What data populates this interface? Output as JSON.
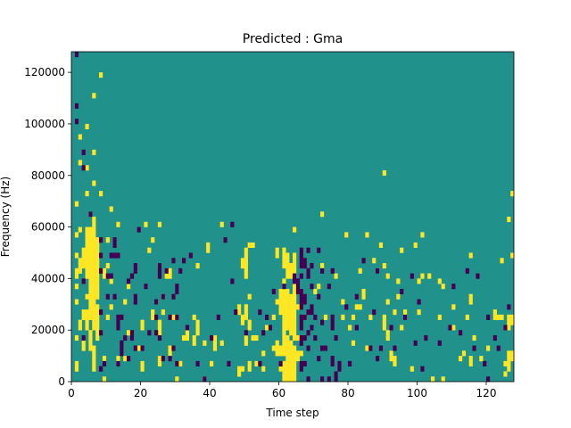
{
  "chart_data": {
    "type": "heatmap",
    "title": "Predicted : Gma",
    "xlabel": "Time step",
    "ylabel": "Frequency (Hz)",
    "xlim": [
      0,
      128
    ],
    "ylim": [
      0,
      128000
    ],
    "xticks": [
      0,
      20,
      40,
      60,
      80,
      100,
      120
    ],
    "yticks": [
      0,
      20000,
      40000,
      60000,
      80000,
      100000,
      120000
    ],
    "rows": 64,
    "cols": 128,
    "value_levels": [
      -1,
      0,
      1
    ],
    "colors": {
      "low": "#440154",
      "mid": "#21918c",
      "high": "#fde725"
    },
    "grid": false,
    "legend": "none",
    "note_runs": "cells at level 1 (yellow) and level -1 (purple); background is level 0; each run is [col, rowStart, rowEnd]",
    "high_runs": [
      [
        1,
        2,
        3
      ],
      [
        1,
        8,
        8
      ],
      [
        1,
        15,
        15
      ],
      [
        1,
        18,
        18
      ],
      [
        1,
        20,
        21
      ],
      [
        1,
        24,
        24
      ],
      [
        1,
        28,
        28
      ],
      [
        1,
        34,
        34
      ],
      [
        2,
        10,
        11
      ],
      [
        2,
        21,
        23
      ],
      [
        2,
        29,
        29
      ],
      [
        2,
        42,
        42
      ],
      [
        2,
        47,
        47
      ],
      [
        3,
        6,
        7
      ],
      [
        3,
        12,
        13
      ],
      [
        3,
        22,
        25
      ],
      [
        4,
        10,
        13
      ],
      [
        4,
        16,
        16
      ],
      [
        4,
        20,
        29
      ],
      [
        4,
        36,
        36
      ],
      [
        4,
        41,
        41
      ],
      [
        4,
        49,
        49
      ],
      [
        5,
        6,
        9
      ],
      [
        5,
        12,
        29
      ],
      [
        5,
        32,
        32
      ],
      [
        6,
        2,
        6
      ],
      [
        6,
        10,
        31
      ],
      [
        6,
        38,
        38
      ],
      [
        6,
        44,
        44
      ],
      [
        6,
        55,
        55
      ],
      [
        7,
        8,
        14
      ],
      [
        7,
        16,
        27
      ],
      [
        8,
        36,
        36
      ],
      [
        8,
        59,
        59
      ],
      [
        9,
        0,
        0
      ],
      [
        9,
        4,
        4
      ],
      [
        9,
        20,
        21
      ],
      [
        10,
        12,
        12
      ],
      [
        10,
        22,
        22
      ],
      [
        10,
        27,
        27
      ],
      [
        11,
        14,
        14
      ],
      [
        11,
        19,
        19
      ],
      [
        11,
        33,
        33
      ],
      [
        13,
        4,
        4
      ],
      [
        13,
        30,
        30
      ],
      [
        15,
        4,
        4
      ],
      [
        15,
        15,
        15
      ],
      [
        16,
        9,
        9
      ],
      [
        16,
        18,
        18
      ],
      [
        19,
        6,
        6
      ],
      [
        20,
        2,
        3
      ],
      [
        20,
        10,
        11
      ],
      [
        21,
        30,
        30
      ],
      [
        22,
        25,
        25
      ],
      [
        23,
        12,
        13
      ],
      [
        23,
        27,
        27
      ],
      [
        24,
        15,
        15
      ],
      [
        25,
        3,
        4
      ],
      [
        25,
        9,
        11
      ],
      [
        25,
        22,
        22
      ],
      [
        25,
        30,
        30
      ],
      [
        26,
        13,
        13
      ],
      [
        26,
        16,
        16
      ],
      [
        27,
        20,
        20
      ],
      [
        28,
        5,
        6
      ],
      [
        28,
        20,
        21
      ],
      [
        29,
        12,
        12
      ],
      [
        30,
        0,
        0
      ],
      [
        30,
        12,
        12
      ],
      [
        31,
        3,
        3
      ],
      [
        32,
        8,
        8
      ],
      [
        33,
        8,
        9
      ],
      [
        35,
        7,
        8
      ],
      [
        35,
        12,
        12
      ],
      [
        36,
        9,
        11
      ],
      [
        36,
        22,
        22
      ],
      [
        38,
        0,
        0
      ],
      [
        38,
        7,
        7
      ],
      [
        39,
        25,
        26
      ],
      [
        40,
        3,
        3
      ],
      [
        41,
        6,
        8
      ],
      [
        43,
        7,
        7
      ],
      [
        43,
        30,
        30
      ],
      [
        48,
        1,
        2
      ],
      [
        48,
        13,
        14
      ],
      [
        49,
        2,
        2
      ],
      [
        49,
        11,
        12
      ],
      [
        49,
        22,
        23
      ],
      [
        50,
        7,
        8
      ],
      [
        50,
        12,
        14
      ],
      [
        50,
        20,
        25
      ],
      [
        51,
        2,
        3
      ],
      [
        51,
        10,
        11
      ],
      [
        51,
        16,
        16
      ],
      [
        51,
        26,
        26
      ],
      [
        52,
        8,
        8
      ],
      [
        52,
        26,
        26
      ],
      [
        53,
        3,
        3
      ],
      [
        53,
        8,
        8
      ],
      [
        55,
        2,
        2
      ],
      [
        55,
        5,
        5
      ],
      [
        56,
        10,
        10
      ],
      [
        58,
        6,
        6
      ],
      [
        58,
        12,
        12
      ],
      [
        59,
        5,
        7
      ],
      [
        59,
        15,
        15
      ],
      [
        59,
        24,
        25
      ],
      [
        60,
        2,
        2
      ],
      [
        60,
        5,
        6
      ],
      [
        60,
        13,
        17
      ],
      [
        61,
        0,
        3
      ],
      [
        61,
        5,
        19
      ],
      [
        61,
        22,
        25
      ],
      [
        62,
        0,
        3
      ],
      [
        62,
        4,
        8
      ],
      [
        62,
        10,
        17
      ],
      [
        62,
        20,
        24
      ],
      [
        63,
        0,
        7
      ],
      [
        63,
        9,
        16
      ],
      [
        63,
        20,
        22
      ],
      [
        64,
        0,
        6
      ],
      [
        64,
        8,
        22
      ],
      [
        64,
        23,
        24
      ],
      [
        64,
        29,
        29
      ],
      [
        65,
        4,
        5
      ],
      [
        65,
        8,
        8
      ],
      [
        65,
        14,
        14
      ],
      [
        66,
        5,
        5
      ],
      [
        66,
        17,
        17
      ],
      [
        67,
        12,
        12
      ],
      [
        70,
        17,
        17
      ],
      [
        71,
        18,
        18
      ],
      [
        72,
        22,
        22
      ],
      [
        72,
        32,
        32
      ],
      [
        73,
        6,
        6
      ],
      [
        73,
        12,
        12
      ],
      [
        76,
        20,
        20
      ],
      [
        78,
        12,
        12
      ],
      [
        78,
        15,
        15
      ],
      [
        79,
        28,
        28
      ],
      [
        80,
        10,
        10
      ],
      [
        81,
        7,
        7
      ],
      [
        81,
        12,
        12
      ],
      [
        82,
        14,
        14
      ],
      [
        83,
        14,
        14
      ],
      [
        83,
        21,
        21
      ],
      [
        84,
        16,
        17
      ],
      [
        85,
        6,
        6
      ],
      [
        85,
        28,
        28
      ],
      [
        86,
        12,
        12
      ],
      [
        87,
        23,
        23
      ],
      [
        88,
        21,
        21
      ],
      [
        89,
        26,
        26
      ],
      [
        90,
        10,
        12
      ],
      [
        90,
        22,
        22
      ],
      [
        90,
        40,
        40
      ],
      [
        91,
        8,
        9
      ],
      [
        91,
        15,
        15
      ],
      [
        91,
        20,
        20
      ],
      [
        92,
        4,
        5
      ],
      [
        93,
        3,
        4
      ],
      [
        93,
        13,
        13
      ],
      [
        94,
        16,
        16
      ],
      [
        94,
        19,
        19
      ],
      [
        95,
        10,
        10
      ],
      [
        95,
        25,
        25
      ],
      [
        96,
        12,
        13
      ],
      [
        98,
        2,
        2
      ],
      [
        99,
        26,
        26
      ],
      [
        100,
        13,
        13
      ],
      [
        100,
        19,
        19
      ],
      [
        101,
        20,
        20
      ],
      [
        101,
        28,
        28
      ],
      [
        103,
        20,
        20
      ],
      [
        104,
        0,
        0
      ],
      [
        106,
        12,
        12
      ],
      [
        106,
        19,
        19
      ],
      [
        107,
        0,
        0
      ],
      [
        107,
        18,
        18
      ],
      [
        110,
        10,
        10
      ],
      [
        110,
        14,
        14
      ],
      [
        112,
        4,
        4
      ],
      [
        113,
        5,
        5
      ],
      [
        114,
        12,
        12
      ],
      [
        115,
        3,
        4
      ],
      [
        115,
        15,
        16
      ],
      [
        115,
        24,
        24
      ],
      [
        116,
        8,
        8
      ],
      [
        118,
        4,
        4
      ],
      [
        120,
        6,
        6
      ],
      [
        122,
        12,
        13
      ],
      [
        123,
        12,
        12
      ],
      [
        124,
        12,
        12
      ],
      [
        124,
        23,
        23
      ],
      [
        125,
        1,
        1
      ],
      [
        125,
        3,
        3
      ],
      [
        126,
        2,
        5
      ],
      [
        126,
        10,
        12
      ],
      [
        126,
        31,
        31
      ],
      [
        127,
        4,
        5
      ],
      [
        127,
        11,
        12
      ],
      [
        127,
        24,
        24
      ],
      [
        127,
        36,
        36
      ]
    ],
    "low_runs": [
      [
        1,
        50,
        50
      ],
      [
        1,
        53,
        53
      ],
      [
        1,
        63,
        63
      ],
      [
        3,
        8,
        8
      ],
      [
        3,
        19,
        19
      ],
      [
        3,
        41,
        41
      ],
      [
        3,
        44,
        44
      ],
      [
        5,
        32,
        32
      ],
      [
        8,
        2,
        2
      ],
      [
        8,
        9,
        9
      ],
      [
        8,
        13,
        13
      ],
      [
        8,
        21,
        21
      ],
      [
        8,
        24,
        24
      ],
      [
        8,
        27,
        27
      ],
      [
        9,
        3,
        3
      ],
      [
        10,
        16,
        16
      ],
      [
        10,
        20,
        20
      ],
      [
        11,
        20,
        20
      ],
      [
        11,
        24,
        24
      ],
      [
        12,
        16,
        16
      ],
      [
        12,
        24,
        24
      ],
      [
        12,
        26,
        27
      ],
      [
        13,
        3,
        3
      ],
      [
        13,
        10,
        12
      ],
      [
        13,
        24,
        24
      ],
      [
        14,
        5,
        7
      ],
      [
        14,
        12,
        12
      ],
      [
        15,
        8,
        8
      ],
      [
        16,
        4,
        4
      ],
      [
        16,
        19,
        19
      ],
      [
        17,
        8,
        9
      ],
      [
        17,
        20,
        20
      ],
      [
        18,
        6,
        6
      ],
      [
        18,
        15,
        16
      ],
      [
        18,
        21,
        22
      ],
      [
        19,
        29,
        29
      ],
      [
        20,
        6,
        6
      ],
      [
        21,
        18,
        18
      ],
      [
        22,
        9,
        9
      ],
      [
        24,
        9,
        9
      ],
      [
        24,
        12,
        12
      ],
      [
        24,
        15,
        15
      ],
      [
        25,
        8,
        8
      ],
      [
        25,
        20,
        22
      ],
      [
        26,
        4,
        4
      ],
      [
        26,
        16,
        16
      ],
      [
        27,
        21,
        21
      ],
      [
        28,
        4,
        4
      ],
      [
        28,
        12,
        12
      ],
      [
        29,
        6,
        6
      ],
      [
        29,
        16,
        16
      ],
      [
        29,
        23,
        23
      ],
      [
        30,
        3,
        3
      ],
      [
        30,
        12,
        12
      ],
      [
        30,
        17,
        18
      ],
      [
        31,
        21,
        21
      ],
      [
        32,
        23,
        23
      ],
      [
        33,
        10,
        10
      ],
      [
        34,
        24,
        24
      ],
      [
        36,
        3,
        3
      ],
      [
        38,
        0,
        0
      ],
      [
        40,
        8,
        8
      ],
      [
        42,
        12,
        12
      ],
      [
        44,
        27,
        27
      ],
      [
        45,
        3,
        3
      ],
      [
        46,
        19,
        19
      ],
      [
        46,
        30,
        30
      ],
      [
        47,
        13,
        13
      ],
      [
        50,
        9,
        9
      ],
      [
        54,
        3,
        3
      ],
      [
        54,
        13,
        13
      ],
      [
        55,
        9,
        9
      ],
      [
        56,
        12,
        12
      ],
      [
        57,
        10,
        10
      ],
      [
        58,
        17,
        17
      ],
      [
        60,
        3,
        3
      ],
      [
        61,
        18,
        18
      ],
      [
        64,
        19,
        20
      ],
      [
        65,
        17,
        19
      ],
      [
        66,
        2,
        3
      ],
      [
        66,
        7,
        8
      ],
      [
        66,
        10,
        12
      ],
      [
        66,
        14,
        17
      ],
      [
        66,
        20,
        20
      ],
      [
        66,
        22,
        25
      ],
      [
        67,
        3,
        3
      ],
      [
        67,
        8,
        8
      ],
      [
        67,
        12,
        12
      ],
      [
        67,
        15,
        16
      ],
      [
        67,
        22,
        23
      ],
      [
        68,
        0,
        0
      ],
      [
        68,
        6,
        6
      ],
      [
        68,
        9,
        9
      ],
      [
        68,
        13,
        13
      ],
      [
        68,
        20,
        21
      ],
      [
        68,
        25,
        25
      ],
      [
        69,
        10,
        10
      ],
      [
        69,
        13,
        14
      ],
      [
        69,
        18,
        18
      ],
      [
        69,
        22,
        22
      ],
      [
        70,
        8,
        8
      ],
      [
        70,
        12,
        12
      ],
      [
        71,
        4,
        4
      ],
      [
        71,
        16,
        16
      ],
      [
        71,
        25,
        25
      ],
      [
        72,
        0,
        0
      ],
      [
        72,
        6,
        6
      ],
      [
        72,
        11,
        11
      ],
      [
        72,
        21,
        21
      ],
      [
        73,
        6,
        6
      ],
      [
        74,
        0,
        0
      ],
      [
        74,
        18,
        18
      ],
      [
        75,
        3,
        4
      ],
      [
        75,
        10,
        12
      ],
      [
        75,
        21,
        21
      ],
      [
        76,
        0,
        1
      ],
      [
        76,
        8,
        8
      ],
      [
        77,
        2,
        3
      ],
      [
        79,
        14,
        14
      ],
      [
        80,
        3,
        3
      ],
      [
        82,
        10,
        10
      ],
      [
        82,
        16,
        16
      ],
      [
        84,
        23,
        23
      ],
      [
        86,
        6,
        6
      ],
      [
        87,
        13,
        13
      ],
      [
        88,
        4,
        4
      ],
      [
        88,
        21,
        21
      ],
      [
        89,
        6,
        6
      ],
      [
        92,
        10,
        10
      ],
      [
        93,
        6,
        6
      ],
      [
        95,
        17,
        17
      ],
      [
        96,
        12,
        12
      ],
      [
        98,
        20,
        20
      ],
      [
        99,
        7,
        7
      ],
      [
        100,
        15,
        15
      ],
      [
        101,
        2,
        2
      ],
      [
        102,
        8,
        8
      ],
      [
        106,
        7,
        7
      ],
      [
        109,
        10,
        10
      ],
      [
        110,
        18,
        18
      ],
      [
        112,
        9,
        9
      ],
      [
        114,
        21,
        21
      ],
      [
        116,
        6,
        6
      ],
      [
        117,
        20,
        20
      ],
      [
        119,
        3,
        3
      ],
      [
        120,
        0,
        0
      ],
      [
        120,
        12,
        12
      ],
      [
        122,
        8,
        8
      ],
      [
        123,
        6,
        6
      ],
      [
        125,
        10,
        10
      ],
      [
        126,
        14,
        14
      ]
    ]
  }
}
